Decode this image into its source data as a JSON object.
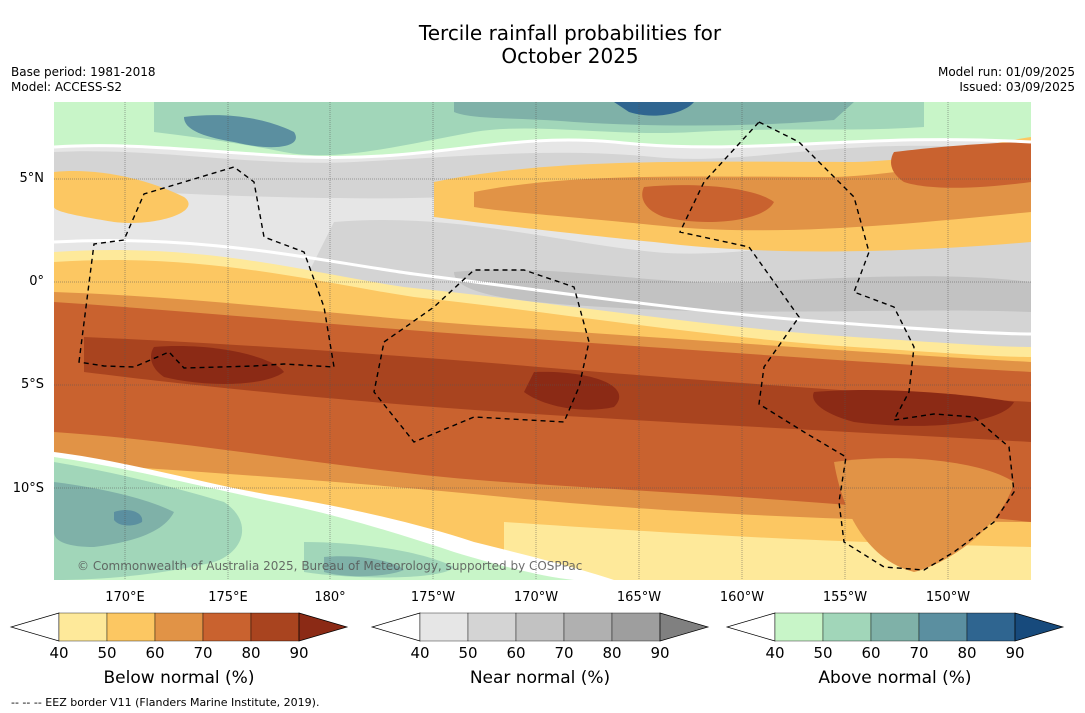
{
  "title_line1": "Tercile rainfall probabilities for",
  "title_line2": "October 2025",
  "meta_left": [
    "Base period: 1981-2018",
    "Model: ACCESS-S2"
  ],
  "meta_right": [
    "Model run: 01/09/2025",
    "Issued: 03/09/2025"
  ],
  "lat_labels": [
    "5°N",
    "0°",
    "5°S",
    "10°S"
  ],
  "lon_labels": [
    "170°E",
    "175°E",
    "180°",
    "175°W",
    "170°W",
    "165°W",
    "160°W",
    "155°W",
    "150°W"
  ],
  "credit": "© Commonwealth of Australia 2025, Bureau of Meteorology, supported by COSPPac",
  "colorbars": [
    {
      "label": "Below normal (%)",
      "ticks": [
        "40",
        "50",
        "60",
        "70",
        "80",
        "90"
      ],
      "colors": [
        "#ffffff",
        "#fee99a",
        "#fcc762",
        "#e19346",
        "#c9622f",
        "#a9441f",
        "#8b2a15"
      ]
    },
    {
      "label": "Near normal (%)",
      "ticks": [
        "40",
        "50",
        "60",
        "70",
        "80",
        "90"
      ],
      "colors": [
        "#ffffff",
        "#e6e6e6",
        "#d4d4d4",
        "#c2c2c2",
        "#b0b0b0",
        "#9e9e9e",
        "#808080"
      ]
    },
    {
      "label": "Above normal (%)",
      "ticks": [
        "40",
        "50",
        "60",
        "70",
        "80",
        "90"
      ],
      "colors": [
        "#ffffff",
        "#c8f5c8",
        "#a1d6b9",
        "#7fb1a8",
        "#5b8fa0",
        "#2f6590",
        "#174a7c"
      ]
    }
  ],
  "footer": "--  --  -- EEZ border V11 (Flanders Marine Institute, 2019)."
}
